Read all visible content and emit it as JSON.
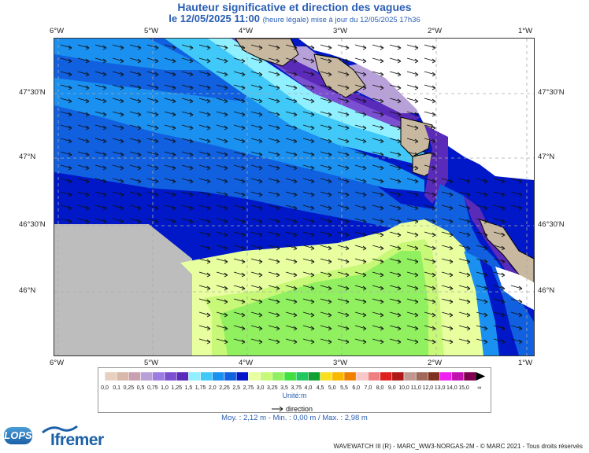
{
  "header": {
    "title": "Hauteur significative et direction des vagues",
    "date_main": "le 12/05/2025 11:00",
    "date_note": "(heure légale) mise à jour du 12/05/2025 17h36"
  },
  "map": {
    "lon_labels": [
      "6°W",
      "5°W",
      "4°W",
      "3°W",
      "2°W",
      "1°W"
    ],
    "lat_labels": [
      "47°30'N",
      "47°N",
      "46°30'N",
      "46°N"
    ]
  },
  "legend": {
    "unit": "Unité:m",
    "direction_label": "direction",
    "classes": [
      {
        "label": "0,0",
        "color": "#e8d0c0"
      },
      {
        "label": "0,1",
        "color": "#d8b8a8"
      },
      {
        "label": "0,25",
        "color": "#c8a0b0"
      },
      {
        "label": "0,5",
        "color": "#b8a0d8"
      },
      {
        "label": "0,75",
        "color": "#9c7ce0"
      },
      {
        "label": "1,0",
        "color": "#7a4fd0"
      },
      {
        "label": "1,25",
        "color": "#5a2ab8"
      },
      {
        "label": "1,5",
        "color": "#90f0ff"
      },
      {
        "label": "1,75",
        "color": "#40c8f8"
      },
      {
        "label": "2,0",
        "color": "#1a90f0"
      },
      {
        "label": "2,25",
        "color": "#1060e0"
      },
      {
        "label": "2,5",
        "color": "#0018c8"
      },
      {
        "label": "2,75",
        "color": "#e8ffa0"
      },
      {
        "label": "3,0",
        "color": "#c8f878"
      },
      {
        "label": "3,25",
        "color": "#90f060"
      },
      {
        "label": "3,5",
        "color": "#40e040"
      },
      {
        "label": "3,75",
        "color": "#20c860"
      },
      {
        "label": "4,0",
        "color": "#10a030"
      },
      {
        "label": "4,5",
        "color": "#f8e020"
      },
      {
        "label": "5,0",
        "color": "#f8b800"
      },
      {
        "label": "5,5",
        "color": "#f08000"
      },
      {
        "label": "6,0",
        "color": "#f8c8c8"
      },
      {
        "label": "7,0",
        "color": "#f08080"
      },
      {
        "label": "8,0",
        "color": "#e02020"
      },
      {
        "label": "9,0",
        "color": "#b01818"
      },
      {
        "label": "10,0",
        "color": "#c09890"
      },
      {
        "label": "11,0",
        "color": "#a06858"
      },
      {
        "label": "12,0",
        "color": "#803020"
      },
      {
        "label": "13,0",
        "color": "#f020f0"
      },
      {
        "label": "14,0",
        "color": "#c010b0"
      },
      {
        "label": "15,0",
        "color": "#800050"
      }
    ],
    "last_symbol": "∞"
  },
  "stats": "Moy. : 2,12 m   -   Min. : 0,00 m / Max. : 2,98 m",
  "footer": "WAVEWATCH III (R) - MARC_WW3-NORGAS-2M - © MARC 2021 - Tous droits réservés",
  "logos": {
    "lops": "LOPS",
    "ifremer": "Ifremer"
  }
}
